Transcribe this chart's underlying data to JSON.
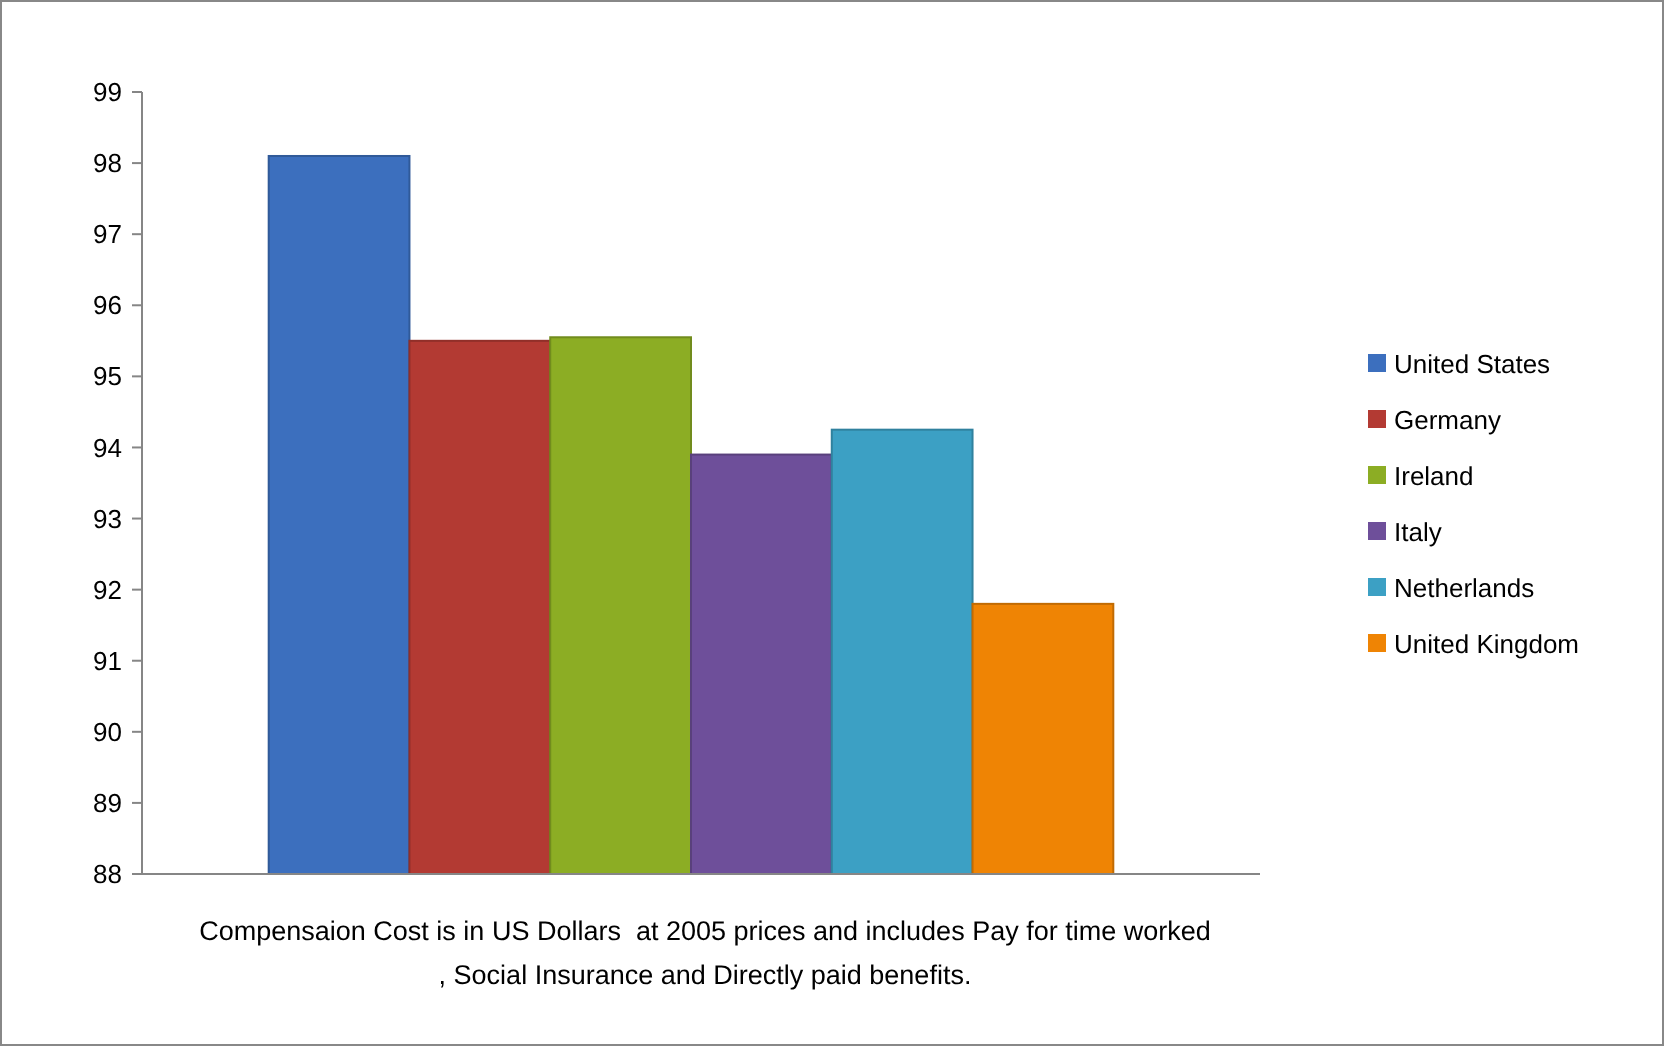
{
  "chart_data": {
    "type": "bar",
    "categories": [
      null
    ],
    "series": [
      {
        "name": "United States",
        "color": "#3c6fbe",
        "values": [
          98.1
        ]
      },
      {
        "name": "Germany",
        "color": "#b33a33",
        "values": [
          95.5
        ]
      },
      {
        "name": "Ireland",
        "color": "#8cad24",
        "values": [
          95.55
        ]
      },
      {
        "name": "Italy",
        "color": "#6e4f9a",
        "values": [
          93.9
        ]
      },
      {
        "name": "Netherlands",
        "color": "#3ca0c4",
        "values": [
          94.25
        ]
      },
      {
        "name": "United Kingdom",
        "color": "#ef8404",
        "values": [
          91.8
        ]
      }
    ],
    "ylim": [
      88,
      99
    ],
    "yticks": [
      88,
      89,
      90,
      91,
      92,
      93,
      94,
      95,
      96,
      97,
      98,
      99
    ],
    "grid": false,
    "legend": "right",
    "annotations": [
      "Compensaion Cost is in US Dollars  at 2005 prices and includes Pay for time worked\n, Social Insurance and Directly paid benefits."
    ]
  }
}
